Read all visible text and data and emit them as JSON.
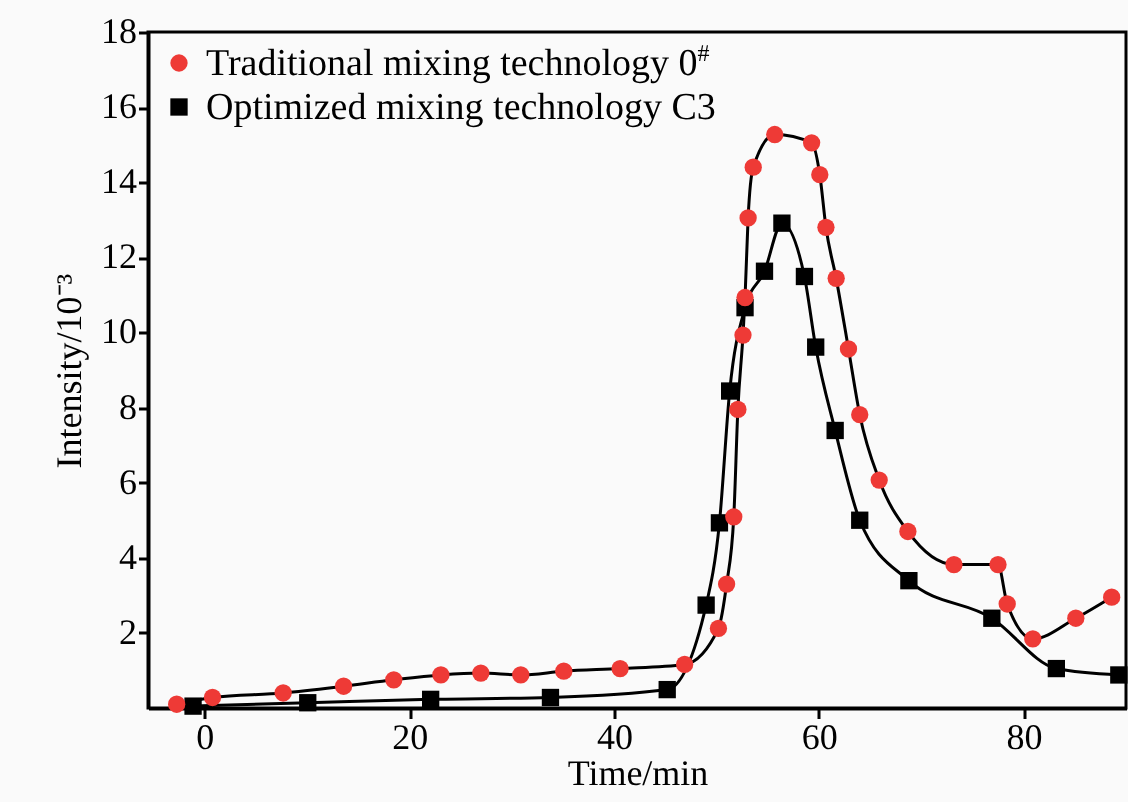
{
  "chart_data": {
    "type": "line",
    "xlabel": "Time/min",
    "ylabel": "Intensity/10⁻³",
    "xlim": [
      -5.5,
      90
    ],
    "xticks": [
      0,
      20,
      40,
      60,
      80
    ],
    "ylim": [
      0,
      18
    ],
    "yticks": [
      2,
      4,
      6,
      8,
      10,
      12,
      14,
      16,
      18
    ],
    "legend": "top left",
    "grid": false,
    "series": [
      {
        "name": "Traditional mixing technology 0$^{#}$",
        "color": "#ee3a36",
        "marker": "circle",
        "x": [
          -2.7,
          0.8,
          7.7,
          13.6,
          18.5,
          23.1,
          27.0,
          30.9,
          35.1,
          40.6,
          46.9,
          50.2,
          51.0,
          51.7,
          52.1,
          52.6,
          52.8,
          53.1,
          53.6,
          55.7,
          59.3,
          60.1,
          60.7,
          61.7,
          62.9,
          64.0,
          65.9,
          68.7,
          73.2,
          77.5,
          78.4,
          80.9,
          85.1,
          88.6
        ],
        "values": [
          0.1,
          0.28,
          0.4,
          0.58,
          0.75,
          0.88,
          0.93,
          0.88,
          0.98,
          1.05,
          1.16,
          2.12,
          3.3,
          5.09,
          7.95,
          9.93,
          10.93,
          13.05,
          14.4,
          15.27,
          15.05,
          14.2,
          12.8,
          11.44,
          9.56,
          7.81,
          6.07,
          4.7,
          3.82,
          3.82,
          2.77,
          1.84,
          2.39,
          2.95
        ]
      },
      {
        "name": "Optimized mixing technology C3",
        "color": "#000000",
        "marker": "square",
        "x": [
          -1.1,
          10.1,
          22.1,
          33.8,
          45.2,
          49.0,
          50.3,
          51.3,
          52.8,
          54.7,
          56.4,
          58.6,
          59.7,
          61.6,
          64.0,
          68.8,
          76.9,
          83.2,
          89.3
        ],
        "values": [
          0.05,
          0.14,
          0.23,
          0.28,
          0.49,
          2.74,
          4.93,
          8.44,
          10.66,
          11.63,
          12.91,
          11.49,
          9.61,
          7.39,
          5.0,
          3.39,
          2.39,
          1.05,
          0.88
        ]
      }
    ]
  }
}
